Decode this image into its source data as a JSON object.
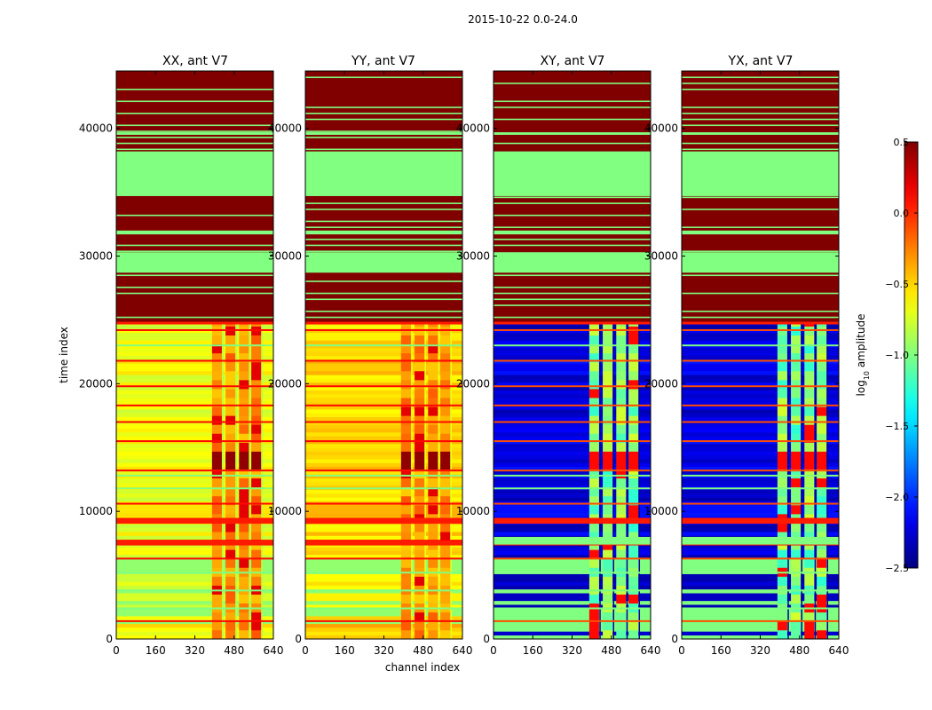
{
  "chart_data": {
    "type": "heatmap",
    "suptitle": "2015-10-22 0.0-24.0",
    "xlabel": "channel index",
    "ylabel": "time index",
    "xlim": [
      0,
      640
    ],
    "ylim": [
      0,
      44500
    ],
    "xticks": [
      0,
      160,
      320,
      480,
      640
    ],
    "yticks": [
      0,
      10000,
      20000,
      30000,
      40000
    ],
    "panels": [
      {
        "title": "XX, ant V7",
        "pol": "XX",
        "base_level": -0.65
      },
      {
        "title": "YY, ant V7",
        "pol": "YY",
        "base_level": -0.5
      },
      {
        "title": "XY, ant V7",
        "pol": "XY",
        "base_level": -2.2
      },
      {
        "title": "YX, ant V7",
        "pol": "YX",
        "base_level": -2.2
      }
    ],
    "colorbar": {
      "label_prefix": "log",
      "label_sub": "10",
      "label_suffix": " amplitude",
      "range": [
        -2.5,
        0.5
      ],
      "ticks": [
        0.5,
        0.0,
        -0.5,
        -1.0,
        -1.5,
        -2.0,
        -2.5
      ],
      "tick_labels": [
        "0.5",
        "0.0",
        "−0.5",
        "−1.0",
        "−1.5",
        "−2.0",
        "−2.5"
      ],
      "colormap": "jet"
    },
    "flagged_blocks": [
      {
        "y0": 24700,
        "y1": 44500,
        "level": 0.5
      },
      {
        "y0": 34700,
        "y1": 38200,
        "level": -1.0
      },
      {
        "y0": 28700,
        "y1": 30300,
        "level": -1.0
      },
      {
        "y0": 31700,
        "y1": 32000,
        "level": -1.0
      },
      {
        "y0": 39500,
        "y1": 39700,
        "level": -1.0
      }
    ],
    "rfi_channel_range": [
      390,
      600
    ],
    "data_time_range": [
      0,
      24700
    ]
  }
}
